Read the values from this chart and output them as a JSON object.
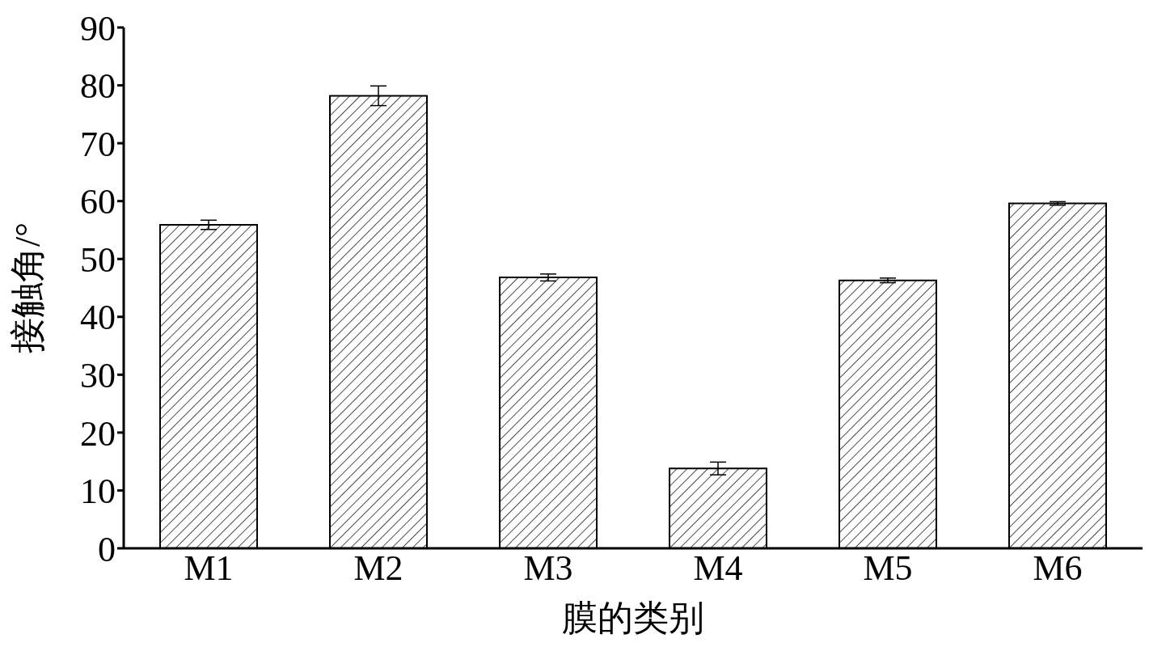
{
  "chart_data": {
    "type": "bar",
    "xlabel": "膜的类别",
    "ylabel": "接触角/°",
    "categories": [
      "M1",
      "M2",
      "M3",
      "M4",
      "M5",
      "M6"
    ],
    "values": [
      55.9,
      78.2,
      46.8,
      13.8,
      46.3,
      59.6
    ],
    "errors": [
      0.8,
      1.7,
      0.6,
      1.1,
      0.4,
      0.3
    ],
    "color": "#000000",
    "ylim": [
      0,
      90
    ],
    "yticks": [
      0,
      10,
      20,
      30,
      40,
      50,
      60,
      70,
      80,
      90
    ],
    "grid": false,
    "legend": false
  }
}
